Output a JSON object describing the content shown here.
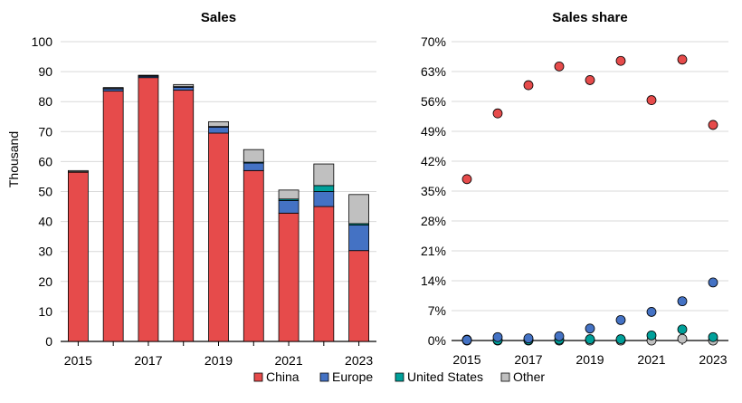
{
  "legend": {
    "items": [
      {
        "name": "China",
        "color": "#e64b4b"
      },
      {
        "name": "Europe",
        "color": "#4472c4"
      },
      {
        "name": "United States",
        "color": "#00a09a"
      },
      {
        "name": "Other",
        "color": "#c0c0c0"
      }
    ]
  },
  "chart_data": [
    {
      "type": "bar",
      "stacked": true,
      "title": "Sales",
      "xlabel": "",
      "ylabel": "Thousand",
      "ylim": [
        0,
        100
      ],
      "yticks": [
        0,
        10,
        20,
        30,
        40,
        50,
        60,
        70,
        80,
        90,
        100
      ],
      "categories": [
        2015,
        2016,
        2017,
        2018,
        2019,
        2020,
        2021,
        2022,
        2023
      ],
      "xtick_labels": [
        "2015",
        "2017",
        "2019",
        "2021",
        "2023"
      ],
      "grid": "horizontal",
      "legend_position": "bottom",
      "series": [
        {
          "name": "China",
          "color": "#e64b4b",
          "values": [
            56.5,
            83.5,
            88.0,
            83.8,
            69.5,
            57.0,
            42.8,
            45.0,
            30.3
          ]
        },
        {
          "name": "Europe",
          "color": "#4472c4",
          "values": [
            0.0,
            0.8,
            0.5,
            1.0,
            2.0,
            2.5,
            4.2,
            5.0,
            8.5
          ]
        },
        {
          "name": "United States",
          "color": "#00a09a",
          "values": [
            0.1,
            0.1,
            0.1,
            0.2,
            0.2,
            0.3,
            0.5,
            2.0,
            0.5
          ]
        },
        {
          "name": "Other",
          "color": "#c0c0c0",
          "values": [
            0.4,
            0.3,
            0.2,
            0.7,
            1.6,
            4.2,
            3.0,
            7.2,
            9.7
          ]
        }
      ]
    },
    {
      "type": "scatter",
      "title": "Sales share",
      "xlabel": "",
      "ylabel": "",
      "ylim": [
        0,
        70
      ],
      "yticks": [
        0,
        7,
        14,
        21,
        28,
        35,
        42,
        49,
        56,
        63,
        70
      ],
      "ytick_labels": [
        "0%",
        "7%",
        "14%",
        "21%",
        "28%",
        "35%",
        "42%",
        "49%",
        "56%",
        "63%",
        "70%"
      ],
      "x": [
        2015,
        2016,
        2017,
        2018,
        2019,
        2020,
        2021,
        2022,
        2023
      ],
      "xtick_labels": [
        "2015",
        "2017",
        "2019",
        "2021",
        "2023"
      ],
      "grid": "horizontal",
      "legend_position": "bottom",
      "series": [
        {
          "name": "China",
          "color": "#e64b4b",
          "values": [
            37.8,
            53.2,
            59.8,
            64.2,
            61.0,
            65.5,
            56.3,
            65.8,
            50.5
          ]
        },
        {
          "name": "Europe",
          "color": "#4472c4",
          "values": [
            0.1,
            0.8,
            0.5,
            1.0,
            2.8,
            4.8,
            6.7,
            9.2,
            13.6
          ]
        },
        {
          "name": "United States",
          "color": "#00a09a",
          "values": [
            0.2,
            0.1,
            0.1,
            0.2,
            0.3,
            0.3,
            1.2,
            2.6,
            0.8
          ]
        },
        {
          "name": "Other",
          "color": "#c0c0c0",
          "values": [
            0.0,
            0.0,
            0.0,
            0.0,
            0.0,
            0.0,
            0.0,
            0.4,
            0.0
          ]
        }
      ]
    }
  ]
}
